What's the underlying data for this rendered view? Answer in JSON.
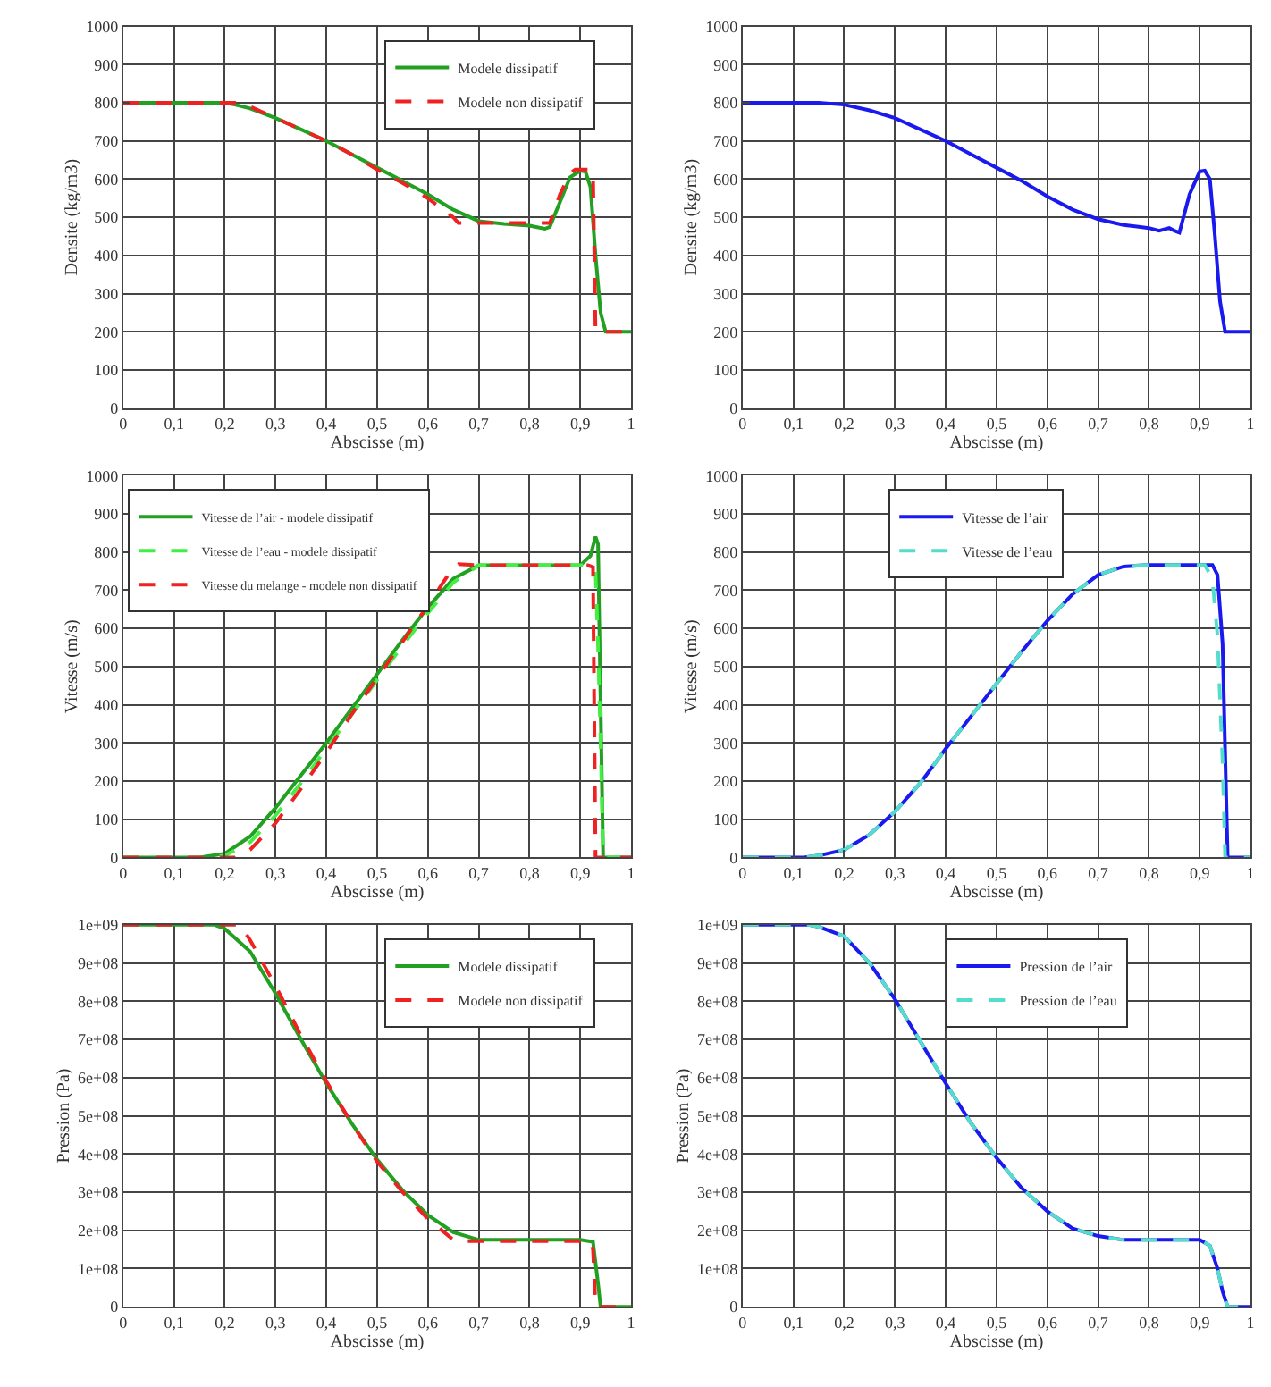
{
  "chart_data": [
    {
      "type": "line",
      "xlabel": "Abscisse (m)",
      "ylabel": "Densite (kg/m3)",
      "xlim": [
        0,
        1
      ],
      "ylim": [
        0,
        1000
      ],
      "xticks": [
        0,
        {
          "value": 0.1,
          "label": "0,1"
        },
        {
          "value": 0.2,
          "label": "0,2"
        },
        {
          "value": 0.3,
          "label": "0,3"
        },
        {
          "value": 0.4,
          "label": "0,4"
        },
        {
          "value": 0.5,
          "label": "0,5"
        },
        {
          "value": 0.6,
          "label": "0,6"
        },
        {
          "value": 0.7,
          "label": "0,7"
        },
        {
          "value": 0.8,
          "label": "0,8"
        },
        {
          "value": 0.9,
          "label": "0,9"
        },
        1
      ],
      "yticks": [
        0,
        100,
        200,
        300,
        400,
        500,
        600,
        700,
        800,
        900,
        1000
      ],
      "grid": true,
      "legend": "top right",
      "series": [
        {
          "name": "Modele dissipatif",
          "color": "#22a022",
          "line_style": "solid",
          "x": [
            0,
            0.2,
            0.22,
            0.25,
            0.3,
            0.35,
            0.4,
            0.45,
            0.5,
            0.55,
            0.6,
            0.65,
            0.7,
            0.75,
            0.8,
            0.83,
            0.84,
            0.86,
            0.88,
            0.9,
            0.91,
            0.92,
            0.93,
            0.94,
            0.95,
            1
          ],
          "values": [
            800,
            800,
            795,
            785,
            760,
            730,
            700,
            665,
            630,
            595,
            560,
            520,
            490,
            483,
            478,
            470,
            475,
            540,
            605,
            622,
            620,
            580,
            400,
            250,
            200,
            200
          ]
        },
        {
          "name": "Modele non dissipatif",
          "color": "#ee2222",
          "line_style": "dashed",
          "x": [
            0,
            0.22,
            0.25,
            0.3,
            0.35,
            0.4,
            0.45,
            0.5,
            0.55,
            0.6,
            0.65,
            0.66,
            0.7,
            0.8,
            0.84,
            0.86,
            0.88,
            0.89,
            0.92,
            0.925,
            0.93,
            1
          ],
          "values": [
            800,
            800,
            790,
            760,
            730,
            700,
            665,
            625,
            590,
            550,
            500,
            485,
            485,
            485,
            485,
            560,
            615,
            625,
            625,
            620,
            200,
            200
          ]
        }
      ]
    },
    {
      "type": "line",
      "xlabel": "Abscisse (m)",
      "ylabel": "Densite (kg/m3)",
      "xlim": [
        0,
        1
      ],
      "ylim": [
        0,
        1000
      ],
      "xticks": [
        0,
        {
          "value": 0.1,
          "label": "0,1"
        },
        {
          "value": 0.2,
          "label": "0,2"
        },
        {
          "value": 0.3,
          "label": "0,3"
        },
        {
          "value": 0.4,
          "label": "0,4"
        },
        {
          "value": 0.5,
          "label": "0,5"
        },
        {
          "value": 0.6,
          "label": "0,6"
        },
        {
          "value": 0.7,
          "label": "0,7"
        },
        {
          "value": 0.8,
          "label": "0,8"
        },
        {
          "value": 0.9,
          "label": "0,9"
        },
        1
      ],
      "yticks": [
        0,
        100,
        200,
        300,
        400,
        500,
        600,
        700,
        800,
        900,
        1000
      ],
      "grid": true,
      "series": [
        {
          "color": "#1a1aee",
          "line_style": "solid",
          "x": [
            0,
            0.15,
            0.2,
            0.25,
            0.3,
            0.35,
            0.4,
            0.45,
            0.5,
            0.55,
            0.6,
            0.65,
            0.7,
            0.75,
            0.8,
            0.82,
            0.84,
            0.85,
            0.86,
            0.88,
            0.9,
            0.91,
            0.92,
            0.93,
            0.94,
            0.95,
            1
          ],
          "values": [
            800,
            800,
            795,
            780,
            760,
            730,
            700,
            665,
            630,
            595,
            555,
            520,
            495,
            480,
            472,
            465,
            472,
            465,
            460,
            560,
            620,
            622,
            600,
            450,
            280,
            200,
            200
          ]
        }
      ]
    },
    {
      "type": "line",
      "xlabel": "Abscisse (m)",
      "ylabel": "Vitesse (m/s)",
      "xlim": [
        0,
        1
      ],
      "ylim": [
        0,
        1000
      ],
      "xticks": [
        0,
        {
          "value": 0.1,
          "label": "0,1"
        },
        {
          "value": 0.2,
          "label": "0,2"
        },
        {
          "value": 0.3,
          "label": "0,3"
        },
        {
          "value": 0.4,
          "label": "0,4"
        },
        {
          "value": 0.5,
          "label": "0,5"
        },
        {
          "value": 0.6,
          "label": "0,6"
        },
        {
          "value": 0.7,
          "label": "0,7"
        },
        {
          "value": 0.8,
          "label": "0,8"
        },
        {
          "value": 0.9,
          "label": "0,9"
        },
        1
      ],
      "yticks": [
        0,
        100,
        200,
        300,
        400,
        500,
        600,
        700,
        800,
        900,
        1000
      ],
      "grid": true,
      "legend": "top left",
      "series": [
        {
          "name": "Vitesse de l’air - modele dissipatif",
          "color": "#22a022",
          "line_style": "solid",
          "x": [
            0,
            0.15,
            0.2,
            0.25,
            0.3,
            0.35,
            0.4,
            0.45,
            0.5,
            0.55,
            0.6,
            0.65,
            0.7,
            0.8,
            0.9,
            0.92,
            0.93,
            0.935,
            0.94,
            0.945,
            1
          ],
          "values": [
            0,
            0,
            10,
            55,
            130,
            215,
            300,
            390,
            480,
            570,
            655,
            730,
            765,
            765,
            765,
            790,
            840,
            820,
            400,
            0,
            0
          ]
        },
        {
          "name": "Vitesse de l’eau - modele dissipatif",
          "color": "#44ee44",
          "line_style": "dashed",
          "x": [
            0,
            0.17,
            0.2,
            0.25,
            0.3,
            0.35,
            0.4,
            0.45,
            0.5,
            0.55,
            0.6,
            0.65,
            0.7,
            0.8,
            0.92,
            0.93,
            0.935,
            0.94,
            0.945,
            1
          ],
          "values": [
            0,
            0,
            5,
            40,
            110,
            195,
            285,
            375,
            465,
            555,
            640,
            720,
            765,
            765,
            765,
            750,
            550,
            300,
            0,
            0
          ]
        },
        {
          "name": "Vitesse du melange - modele non dissipatif",
          "color": "#ee2222",
          "line_style": "dashed",
          "x": [
            0,
            0.22,
            0.25,
            0.3,
            0.35,
            0.4,
            0.45,
            0.5,
            0.55,
            0.6,
            0.65,
            0.66,
            0.7,
            0.8,
            0.915,
            0.925,
            0.93,
            1
          ],
          "values": [
            0,
            0,
            20,
            90,
            180,
            275,
            375,
            470,
            565,
            660,
            760,
            768,
            765,
            765,
            765,
            760,
            0,
            0
          ]
        }
      ]
    },
    {
      "type": "line",
      "xlabel": "Abscisse (m)",
      "ylabel": "Vitesse (m/s)",
      "xlim": [
        0,
        1
      ],
      "ylim": [
        0,
        1000
      ],
      "xticks": [
        0,
        {
          "value": 0.1,
          "label": "0,1"
        },
        {
          "value": 0.2,
          "label": "0,2"
        },
        {
          "value": 0.3,
          "label": "0,3"
        },
        {
          "value": 0.4,
          "label": "0,4"
        },
        {
          "value": 0.5,
          "label": "0,5"
        },
        {
          "value": 0.6,
          "label": "0,6"
        },
        {
          "value": 0.7,
          "label": "0,7"
        },
        {
          "value": 0.8,
          "label": "0,8"
        },
        {
          "value": 0.9,
          "label": "0,9"
        },
        1
      ],
      "yticks": [
        0,
        100,
        200,
        300,
        400,
        500,
        600,
        700,
        800,
        900,
        1000
      ],
      "grid": true,
      "legend": "top",
      "series": [
        {
          "name": "Vitesse de l’air",
          "color": "#1a1aee",
          "line_style": "solid",
          "x": [
            0,
            0.12,
            0.15,
            0.2,
            0.25,
            0.3,
            0.35,
            0.4,
            0.45,
            0.5,
            0.55,
            0.6,
            0.65,
            0.7,
            0.75,
            0.8,
            0.9,
            0.925,
            0.935,
            0.945,
            0.955,
            1
          ],
          "values": [
            0,
            0,
            5,
            20,
            60,
            120,
            195,
            285,
            370,
            455,
            540,
            620,
            690,
            740,
            762,
            766,
            766,
            766,
            740,
            560,
            0,
            0
          ]
        },
        {
          "name": "Vitesse de l’eau",
          "color": "#55ddcc",
          "line_style": "dashed",
          "x": [
            0,
            0.12,
            0.15,
            0.2,
            0.25,
            0.3,
            0.35,
            0.4,
            0.45,
            0.5,
            0.55,
            0.6,
            0.65,
            0.7,
            0.75,
            0.8,
            0.9,
            0.91,
            0.925,
            0.935,
            0.945,
            0.95,
            1
          ],
          "values": [
            0,
            0,
            5,
            20,
            60,
            120,
            195,
            285,
            370,
            455,
            540,
            620,
            690,
            740,
            762,
            766,
            766,
            766,
            730,
            580,
            250,
            0,
            0
          ]
        }
      ]
    },
    {
      "type": "line",
      "xlabel": "Abscisse (m)",
      "ylabel": "Pression (Pa)",
      "xlim": [
        0,
        1
      ],
      "ylim": [
        0,
        1000000000
      ],
      "xticks": [
        0,
        {
          "value": 0.1,
          "label": "0,1"
        },
        {
          "value": 0.2,
          "label": "0,2"
        },
        {
          "value": 0.3,
          "label": "0,3"
        },
        {
          "value": 0.4,
          "label": "0,4"
        },
        {
          "value": 0.5,
          "label": "0,5"
        },
        {
          "value": 0.6,
          "label": "0,6"
        },
        {
          "value": 0.7,
          "label": "0,7"
        },
        {
          "value": 0.8,
          "label": "0,8"
        },
        {
          "value": 0.9,
          "label": "0,9"
        },
        1
      ],
      "yticks": [
        0,
        {
          "value": 100000000,
          "label": "1e+08"
        },
        {
          "value": 200000000,
          "label": "2e+08"
        },
        {
          "value": 300000000,
          "label": "3e+08"
        },
        {
          "value": 400000000,
          "label": "4e+08"
        },
        {
          "value": 500000000,
          "label": "5e+08"
        },
        {
          "value": 600000000,
          "label": "6e+08"
        },
        {
          "value": 700000000,
          "label": "7e+08"
        },
        {
          "value": 800000000,
          "label": "8e+08"
        },
        {
          "value": 900000000,
          "label": "9e+08"
        },
        {
          "value": 1000000000,
          "label": "1e+09"
        }
      ],
      "grid": true,
      "legend": "top right",
      "series": [
        {
          "name": "Modele dissipatif",
          "color": "#22a022",
          "line_style": "solid",
          "x": [
            0,
            0.18,
            0.2,
            0.25,
            0.3,
            0.35,
            0.4,
            0.45,
            0.5,
            0.55,
            0.6,
            0.65,
            0.7,
            0.8,
            0.9,
            0.925,
            0.935,
            0.94,
            1
          ],
          "values": [
            1000000000,
            1000000000,
            990000000,
            930000000,
            820000000,
            700000000,
            585000000,
            480000000,
            385000000,
            305000000,
            240000000,
            195000000,
            175000000,
            175000000,
            175000000,
            170000000,
            60000000,
            0,
            0
          ]
        },
        {
          "name": "Modele non dissipatif",
          "color": "#ee2222",
          "line_style": "dashed",
          "x": [
            0,
            0.23,
            0.25,
            0.3,
            0.35,
            0.4,
            0.45,
            0.5,
            0.55,
            0.6,
            0.65,
            0.66,
            0.7,
            0.8,
            0.92,
            0.925,
            0.93,
            1
          ],
          "values": [
            1000000000,
            1000000000,
            960000000,
            840000000,
            710000000,
            590000000,
            480000000,
            380000000,
            300000000,
            230000000,
            175000000,
            172000000,
            172000000,
            172000000,
            172000000,
            150000000,
            0,
            0
          ]
        }
      ]
    },
    {
      "type": "line",
      "xlabel": "Abscisse (m)",
      "ylabel": "Pression (Pa)",
      "xlim": [
        0,
        1
      ],
      "ylim": [
        0,
        1000000000
      ],
      "xticks": [
        0,
        {
          "value": 0.1,
          "label": "0,1"
        },
        {
          "value": 0.2,
          "label": "0,2"
        },
        {
          "value": 0.3,
          "label": "0,3"
        },
        {
          "value": 0.4,
          "label": "0,4"
        },
        {
          "value": 0.5,
          "label": "0,5"
        },
        {
          "value": 0.6,
          "label": "0,6"
        },
        {
          "value": 0.7,
          "label": "0,7"
        },
        {
          "value": 0.8,
          "label": "0,8"
        },
        {
          "value": 0.9,
          "label": "0,9"
        },
        1
      ],
      "yticks": [
        0,
        {
          "value": 100000000,
          "label": "1e+08"
        },
        {
          "value": 200000000,
          "label": "2e+08"
        },
        {
          "value": 300000000,
          "label": "3e+08"
        },
        {
          "value": 400000000,
          "label": "4e+08"
        },
        {
          "value": 500000000,
          "label": "5e+08"
        },
        {
          "value": 600000000,
          "label": "6e+08"
        },
        {
          "value": 700000000,
          "label": "7e+08"
        },
        {
          "value": 800000000,
          "label": "8e+08"
        },
        {
          "value": 900000000,
          "label": "9e+08"
        },
        {
          "value": 1000000000,
          "label": "1e+09"
        }
      ],
      "grid": true,
      "legend": "top",
      "series": [
        {
          "name": "Pression de l’air",
          "color": "#1a1aee",
          "line_style": "solid",
          "x": [
            0,
            0.13,
            0.15,
            0.2,
            0.25,
            0.3,
            0.35,
            0.4,
            0.45,
            0.5,
            0.55,
            0.6,
            0.65,
            0.7,
            0.75,
            0.8,
            0.9,
            0.92,
            0.935,
            0.945,
            0.955,
            1
          ],
          "values": [
            1000000000,
            1000000000,
            995000000,
            970000000,
            900000000,
            805000000,
            695000000,
            585000000,
            480000000,
            390000000,
            310000000,
            250000000,
            205000000,
            185000000,
            175000000,
            175000000,
            175000000,
            160000000,
            100000000,
            40000000,
            0,
            0
          ]
        },
        {
          "name": "Pression de l’eau",
          "color": "#55ddcc",
          "line_style": "dashed",
          "x": [
            0,
            0.13,
            0.15,
            0.2,
            0.25,
            0.3,
            0.35,
            0.4,
            0.45,
            0.5,
            0.55,
            0.6,
            0.65,
            0.7,
            0.75,
            0.8,
            0.9,
            0.92,
            0.935,
            0.945,
            0.955,
            1
          ],
          "values": [
            1000000000,
            1000000000,
            995000000,
            970000000,
            900000000,
            805000000,
            695000000,
            585000000,
            480000000,
            390000000,
            310000000,
            250000000,
            205000000,
            185000000,
            175000000,
            175000000,
            175000000,
            160000000,
            100000000,
            40000000,
            0,
            0
          ]
        }
      ]
    }
  ]
}
